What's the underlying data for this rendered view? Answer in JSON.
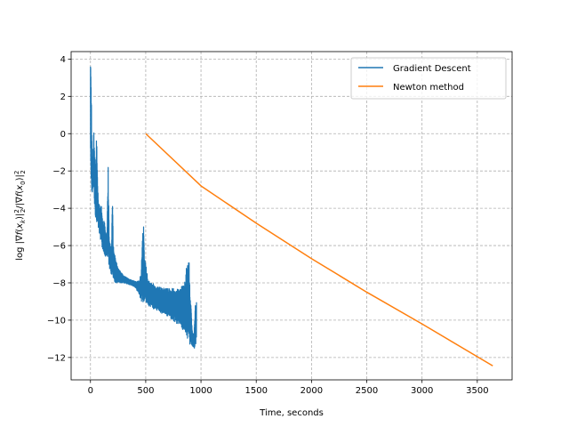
{
  "chart_data": {
    "type": "line",
    "title": "",
    "xlabel": "Time, seconds",
    "ylabel": "log |∇f(x_k)|²₂/|∇f(x_0)|²₂",
    "xlim": [
      -175,
      3815
    ],
    "ylim": [
      -13.2,
      4.4
    ],
    "xticks": [
      0,
      500,
      1000,
      1500,
      2000,
      2500,
      3000,
      3500
    ],
    "yticks": [
      -12,
      -10,
      -8,
      -6,
      -4,
      -2,
      0,
      2,
      4
    ],
    "xtick_labels": [
      "0",
      "500",
      "1000",
      "1500",
      "2000",
      "2500",
      "3000",
      "3500"
    ],
    "ytick_labels": [
      "−12",
      "−10",
      "−8",
      "−6",
      "−4",
      "−2",
      "0",
      "2",
      "4"
    ],
    "grid": true,
    "legend_position": "top-right",
    "series": [
      {
        "name": "Gradient Descent",
        "color": "#1f77b4",
        "oscillating": true,
        "envelope_top": [
          [
            0,
            3.6
          ],
          [
            5,
            3.6
          ],
          [
            15,
            -1.5
          ],
          [
            30,
            0.3
          ],
          [
            45,
            -2.0
          ],
          [
            55,
            0.0
          ],
          [
            70,
            -3.5
          ],
          [
            100,
            -3.8
          ],
          [
            115,
            -5.0
          ],
          [
            125,
            -4.5
          ],
          [
            140,
            -5.5
          ],
          [
            150,
            -5.2
          ],
          [
            160,
            -1.7
          ],
          [
            170,
            -5.6
          ],
          [
            190,
            -6.2
          ],
          [
            200,
            -3.0
          ],
          [
            205,
            -5.8
          ],
          [
            230,
            -6.8
          ],
          [
            260,
            -7.3
          ],
          [
            300,
            -7.6
          ],
          [
            350,
            -7.8
          ],
          [
            400,
            -7.9
          ],
          [
            440,
            -7.9
          ],
          [
            460,
            -7.2
          ],
          [
            472,
            -5.0
          ],
          [
            480,
            -4.5
          ],
          [
            488,
            -6.5
          ],
          [
            520,
            -7.8
          ],
          [
            600,
            -8.2
          ],
          [
            700,
            -8.3
          ],
          [
            800,
            -8.3
          ],
          [
            850,
            -8.0
          ],
          [
            880,
            -6.5
          ],
          [
            892,
            -6.8
          ],
          [
            900,
            -8.0
          ],
          [
            910,
            -9.2
          ],
          [
            920,
            -10.5
          ],
          [
            935,
            -10.8
          ],
          [
            950,
            -9.0
          ],
          [
            960,
            -9.0
          ]
        ],
        "envelope_bottom": [
          [
            0,
            -2.0
          ],
          [
            5,
            -2.5
          ],
          [
            15,
            -3.3
          ],
          [
            30,
            -3.2
          ],
          [
            45,
            -4.5
          ],
          [
            55,
            -4.7
          ],
          [
            70,
            -5.0
          ],
          [
            100,
            -6.0
          ],
          [
            115,
            -6.3
          ],
          [
            125,
            -6.5
          ],
          [
            140,
            -6.6
          ],
          [
            150,
            -6.7
          ],
          [
            160,
            -6.8
          ],
          [
            170,
            -7.2
          ],
          [
            190,
            -7.6
          ],
          [
            200,
            -7.8
          ],
          [
            205,
            -7.9
          ],
          [
            230,
            -8.0
          ],
          [
            260,
            -8.0
          ],
          [
            300,
            -8.0
          ],
          [
            350,
            -8.1
          ],
          [
            400,
            -8.2
          ],
          [
            440,
            -8.6
          ],
          [
            460,
            -9.0
          ],
          [
            472,
            -9.2
          ],
          [
            480,
            -9.0
          ],
          [
            488,
            -9.0
          ],
          [
            520,
            -9.2
          ],
          [
            600,
            -9.5
          ],
          [
            700,
            -9.8
          ],
          [
            800,
            -10.3
          ],
          [
            850,
            -10.7
          ],
          [
            880,
            -11.0
          ],
          [
            892,
            -11.2
          ],
          [
            900,
            -11.3
          ],
          [
            910,
            -11.4
          ],
          [
            920,
            -11.4
          ],
          [
            935,
            -11.5
          ],
          [
            950,
            -11.5
          ],
          [
            960,
            -11.3
          ]
        ]
      },
      {
        "name": "Newton method",
        "color": "#ff7f0e",
        "x": [
          500,
          1000,
          1500,
          2000,
          2500,
          3000,
          3640
        ],
        "y": [
          0.0,
          -2.8,
          -4.8,
          -6.7,
          -8.5,
          -10.2,
          -12.45
        ]
      }
    ]
  }
}
